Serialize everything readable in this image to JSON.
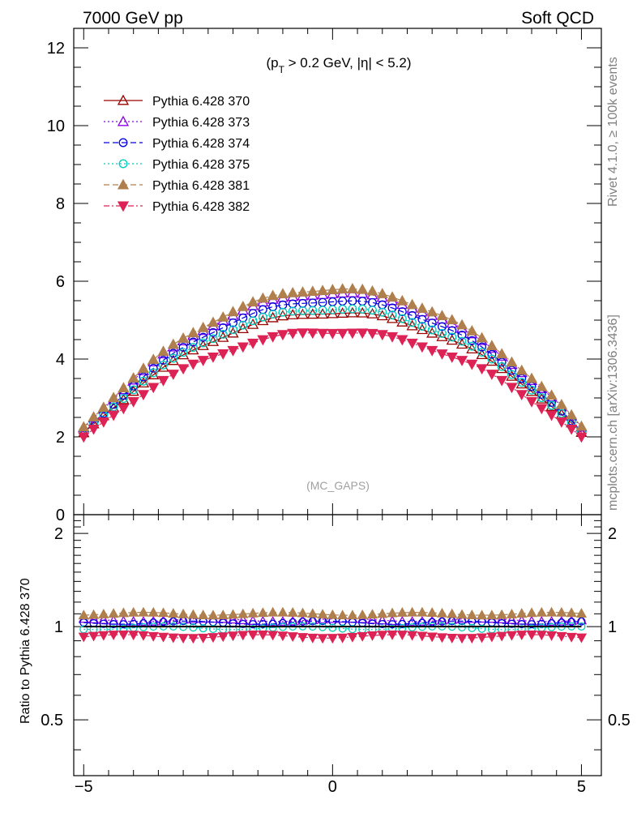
{
  "header": {
    "left": "7000 GeV pp",
    "right": "Soft QCD"
  },
  "side_labels": {
    "rivet": "Rivet 4.1.0, ≥ 100k events",
    "mcplots": "mcplots.cern.ch [arXiv:1306.3436]"
  },
  "chart_data": {
    "type": "scatter",
    "cut_label_parts": [
      "(p",
      "T",
      " > 0.2 GeV, |η| < 5.2)"
    ],
    "watermark": "(MC_GAPS)",
    "x": [
      -5.0,
      -4.8,
      -4.6,
      -4.4,
      -4.2,
      -4.0,
      -3.8,
      -3.6,
      -3.4,
      -3.2,
      -3.0,
      -2.8,
      -2.6,
      -2.4,
      -2.2,
      -2.0,
      -1.8,
      -1.6,
      -1.4,
      -1.2,
      -1.0,
      -0.8,
      -0.6,
      -0.4,
      -0.2,
      0.0,
      0.2,
      0.4,
      0.6,
      0.8,
      1.0,
      1.2,
      1.4,
      1.6,
      1.8,
      2.0,
      2.2,
      2.4,
      2.6,
      2.8,
      3.0,
      3.2,
      3.4,
      3.6,
      3.8,
      4.0,
      4.2,
      4.4,
      4.6,
      4.8,
      5.0
    ],
    "xlim": [
      -5.2,
      5.4
    ],
    "main_ylim": [
      0,
      12.5
    ],
    "ratio_ylim": [
      0.33,
      2.3
    ],
    "x_ticks": [
      "−5",
      "0",
      "5"
    ],
    "x_tick_values": [
      -5,
      0,
      5
    ],
    "main_y_ticks": [
      "0",
      "2",
      "4",
      "6",
      "8",
      "10",
      "12"
    ],
    "main_y_tick_values": [
      0,
      2,
      4,
      6,
      8,
      10,
      12
    ],
    "ratio_y_ticks": [
      "0.5",
      "1",
      "2"
    ],
    "ratio_y_tick_values": [
      0.5,
      1,
      2
    ],
    "ratio_ylabel": "Ratio to Pythia 6.428 370",
    "series": [
      {
        "name": "Pythia 6.428 370",
        "color": "#990000",
        "marker": "triangle-open",
        "line": "solid",
        "peak": 5.2,
        "base": 1.95,
        "ratio_offset": 0.0
      },
      {
        "name": "Pythia 6.428 373",
        "color": "#8a00e6",
        "marker": "triangle-open",
        "line": "dotted",
        "peak": 5.7,
        "base": 2.08,
        "ratio_offset": 0.05
      },
      {
        "name": "Pythia 6.428 374",
        "color": "#0000dd",
        "marker": "circle-open",
        "line": "dashed",
        "peak": 5.5,
        "base": 1.97,
        "ratio_offset": 0.03
      },
      {
        "name": "Pythia 6.428 375",
        "color": "#00ccbb",
        "marker": "circle-open",
        "line": "dotted",
        "peak": 5.3,
        "base": 1.95,
        "ratio_offset": -0.01
      },
      {
        "name": "Pythia 6.428 381",
        "color": "#b07f4e",
        "marker": "triangle-filled",
        "line": "dashed",
        "peak": 5.8,
        "base": 2.1,
        "ratio_offset": 0.1
      },
      {
        "name": "Pythia 6.428 382",
        "color": "#dd2255",
        "marker": "triangledown-filled",
        "line": "dashdot",
        "peak": 4.7,
        "base": 1.85,
        "ratio_offset": -0.07
      }
    ]
  }
}
